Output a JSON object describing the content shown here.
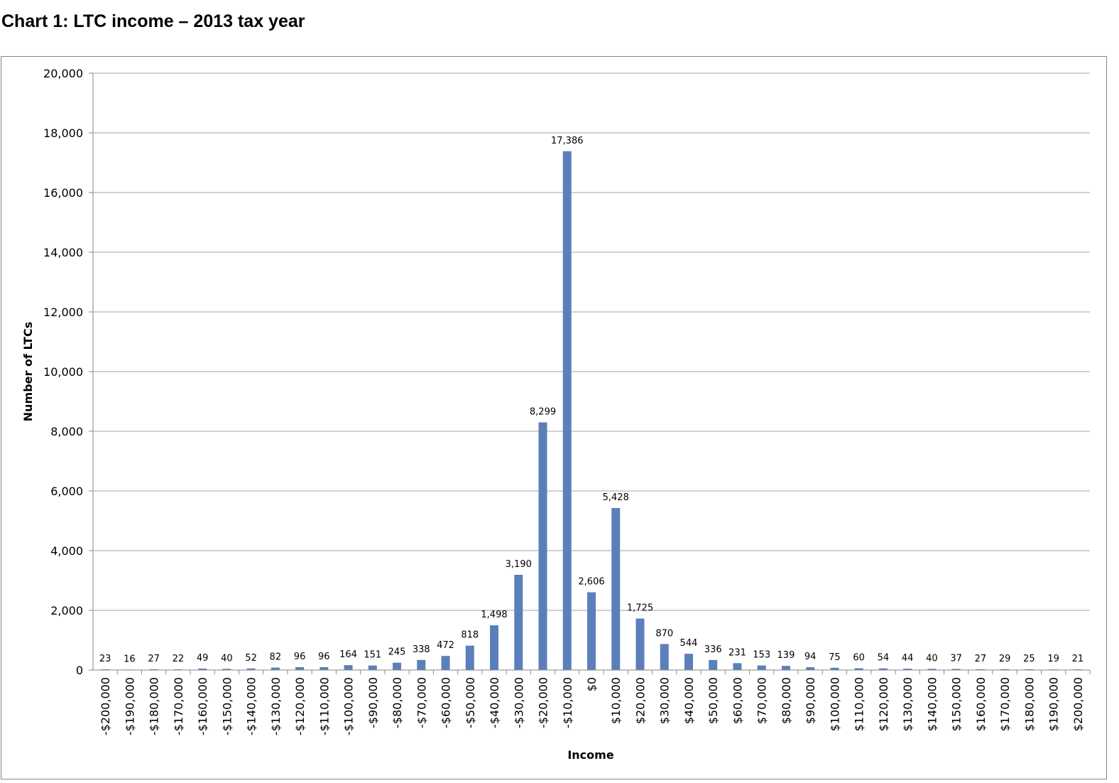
{
  "title": "Chart 1: LTC income – 2013 tax year",
  "colors": {
    "bar": "#5B7FBA",
    "grid": "#A6A6A6",
    "axis": "#868686",
    "text": "#000000"
  },
  "chart_data": {
    "type": "bar",
    "title": "Chart 1: LTC income – 2013 tax year",
    "xlabel": "Income",
    "ylabel": "Number of LTCs",
    "ylim": [
      0,
      20000
    ],
    "yticks": [
      0,
      2000,
      4000,
      6000,
      8000,
      10000,
      12000,
      14000,
      16000,
      18000,
      20000
    ],
    "ytick_labels": [
      "0",
      "2,000",
      "4,000",
      "6,000",
      "8,000",
      "10,000",
      "12,000",
      "14,000",
      "16,000",
      "18,000",
      "20,000"
    ],
    "grid": true,
    "legend": "none",
    "categories": [
      "-$200,000",
      "-$190,000",
      "-$180,000",
      "-$170,000",
      "-$160,000",
      "-$150,000",
      "-$140,000",
      "-$130,000",
      "-$120,000",
      "-$110,000",
      "-$100,000",
      "-$90,000",
      "-$80,000",
      "-$70,000",
      "-$60,000",
      "-$50,000",
      "-$40,000",
      "-$30,000",
      "-$20,000",
      "-$10,000",
      "$0",
      "$10,000",
      "$20,000",
      "$30,000",
      "$40,000",
      "$50,000",
      "$60,000",
      "$70,000",
      "$80,000",
      "$90,000",
      "$100,000",
      "$110,000",
      "$120,000",
      "$130,000",
      "$140,000",
      "$150,000",
      "$160,000",
      "$170,000",
      "$180,000",
      "$190,000",
      "$200,000"
    ],
    "values": [
      23,
      16,
      27,
      22,
      49,
      40,
      52,
      82,
      96,
      96,
      164,
      151,
      245,
      338,
      472,
      818,
      1498,
      3190,
      8299,
      17386,
      2606,
      5428,
      1725,
      870,
      544,
      336,
      231,
      153,
      139,
      94,
      75,
      60,
      54,
      44,
      40,
      37,
      27,
      29,
      25,
      19,
      21
    ],
    "value_labels": [
      "23",
      "16",
      "27",
      "22",
      "49",
      "40",
      "52",
      "82",
      "96",
      "96",
      "164",
      "151",
      "245",
      "338",
      "472",
      "818",
      "1,498",
      "3,190",
      "8,299",
      "17,386",
      "2,606",
      "5,428",
      "1,725",
      "870",
      "544",
      "336",
      "231",
      "153",
      "139",
      "94",
      "75",
      "60",
      "54",
      "44",
      "40",
      "37",
      "27",
      "29",
      "25",
      "19",
      "21"
    ]
  }
}
